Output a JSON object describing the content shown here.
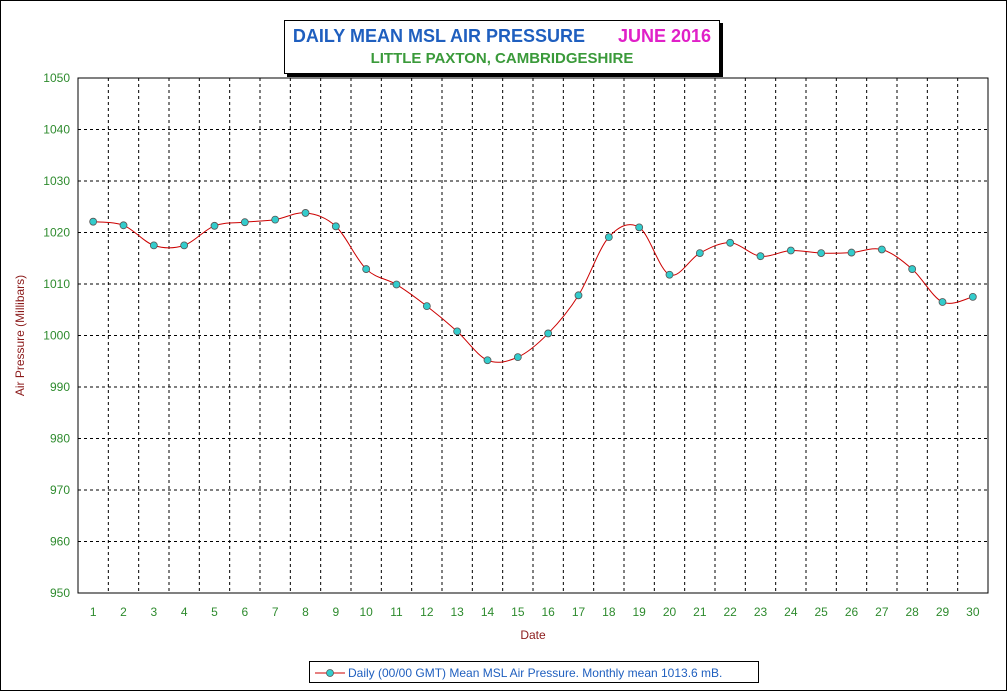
{
  "title": {
    "main": "DAILY MEAN MSL AIR PRESSURE",
    "month": "JUNE 2016",
    "subtitle": "LITTLE PAXTON, CAMBRIDGESHIRE"
  },
  "colors": {
    "title_main": "#1f5fbf",
    "title_month": "#e020c8",
    "subtitle": "#3a9a3a",
    "tick_labels": "#2e8b2e",
    "axis_titles": "#8b1a1a",
    "line": "#cc0000",
    "marker_fill": "#33cccc",
    "legend_text": "#1f5fbf"
  },
  "chart_data": {
    "type": "line",
    "title": "DAILY MEAN MSL AIR PRESSURE",
    "subtitle": "LITTLE PAXTON, CAMBRIDGESHIRE",
    "xlabel": "Date",
    "ylabel": "Air Pressure (Millibars)",
    "xlim": [
      0.5,
      30.5
    ],
    "ylim": [
      950,
      1050
    ],
    "yticks": [
      950,
      960,
      970,
      980,
      990,
      1000,
      1010,
      1020,
      1030,
      1040,
      1050
    ],
    "grid": true,
    "legend_position": "bottom-center",
    "x": [
      1,
      2,
      3,
      4,
      5,
      6,
      7,
      8,
      9,
      10,
      11,
      12,
      13,
      14,
      15,
      16,
      17,
      18,
      19,
      20,
      21,
      22,
      23,
      24,
      25,
      26,
      27,
      28,
      29,
      30
    ],
    "series": [
      {
        "name": "Daily (00/00 GMT) Mean MSL Air Pressure. Monthly mean 1013.6 mB.",
        "values": [
          1022.1,
          1021.4,
          1017.5,
          1017.5,
          1021.3,
          1022.0,
          1022.5,
          1023.8,
          1021.2,
          1012.9,
          1009.9,
          1005.7,
          1000.8,
          995.2,
          995.8,
          1000.4,
          1007.8,
          1019.1,
          1021.0,
          1011.8,
          1016.0,
          1018.0,
          1015.4,
          1016.5,
          1016.0,
          1016.1,
          1016.7,
          1012.9,
          1006.5,
          1007.5
        ]
      }
    ]
  }
}
